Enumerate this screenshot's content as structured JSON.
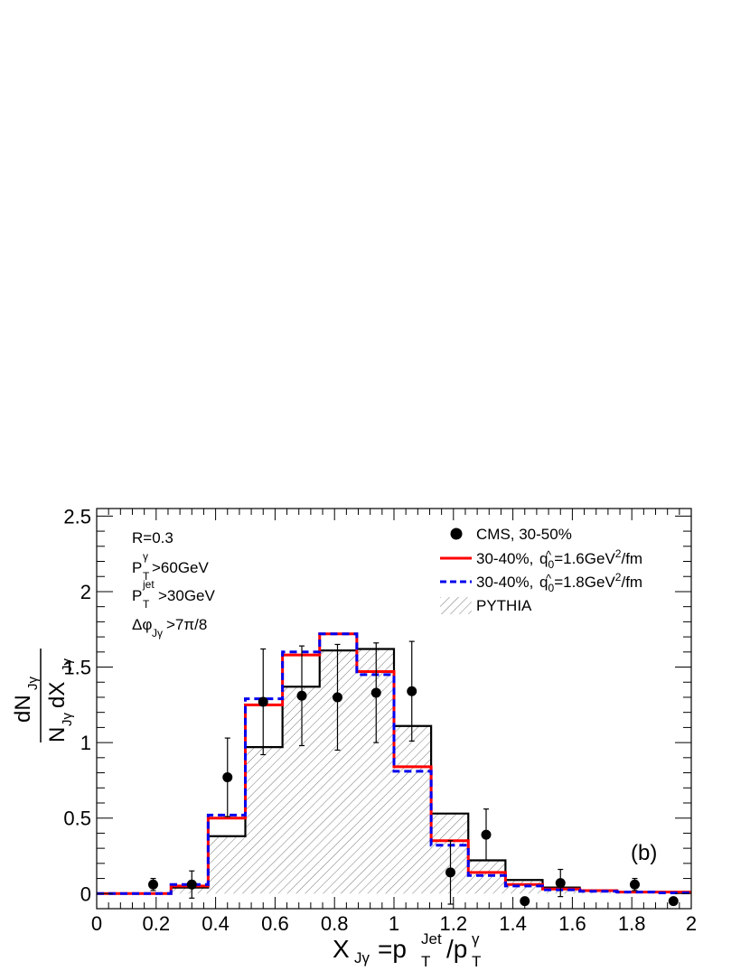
{
  "chart_data": {
    "type": "bar",
    "xlabel_main": "X",
    "xlabel_sub": "Jγ",
    "xlabel_eq": "=p",
    "xlabel_jet_sup": "Jet",
    "xlabel_T": "T",
    "xlabel_slash": "/p",
    "xlabel_gamma_sup": "γ",
    "xlabel_T2": "T",
    "ylabel_num": "dN",
    "ylabel_num_sub": "Jγ",
    "ylabel_den_N": "N",
    "ylabel_den_sub1": "Jγ",
    "ylabel_den_dX": "dX",
    "ylabel_den_sub2": "Jγ",
    "xlim": [
      0,
      2
    ],
    "ylim": [
      -0.1,
      2.55
    ],
    "x_ticks": [
      "0",
      "0.2",
      "0.4",
      "0.6",
      "0.8",
      "1",
      "1.2",
      "1.4",
      "1.6",
      "1.8",
      "2"
    ],
    "y_ticks": [
      "0",
      "0.5",
      "1",
      "1.5",
      "2",
      "2.5"
    ],
    "bin_edges": [
      0,
      0.125,
      0.25,
      0.375,
      0.5,
      0.625,
      0.75,
      0.875,
      1.0,
      1.125,
      1.25,
      1.375,
      1.5,
      1.625,
      1.75,
      1.875,
      2.0
    ],
    "series": [
      {
        "name": "PYTHIA",
        "style": "hatched-step",
        "color": "#000000",
        "values": [
          0.0,
          0.0,
          0.04,
          0.38,
          0.97,
          1.37,
          1.61,
          1.62,
          1.11,
          0.53,
          0.22,
          0.09,
          0.04,
          0.02,
          0.01,
          0.01
        ]
      },
      {
        "name": "30-40%, q0=1.6GeV²/fm",
        "style": "solid-step",
        "color": "#ff0000",
        "values": [
          0.0,
          0.0,
          0.05,
          0.5,
          1.25,
          1.58,
          1.72,
          1.47,
          0.84,
          0.35,
          0.14,
          0.06,
          0.03,
          0.02,
          0.01,
          0.01
        ]
      },
      {
        "name": "30-40%, q0=1.8GeV²/fm",
        "style": "dashed-step",
        "color": "#0000ee",
        "values": [
          0.0,
          0.0,
          0.06,
          0.52,
          1.29,
          1.6,
          1.72,
          1.45,
          0.81,
          0.32,
          0.12,
          0.05,
          0.025,
          0.015,
          0.01,
          0.005
        ]
      },
      {
        "name": "CMS, 30-50%",
        "style": "points",
        "color": "#000000",
        "points": [
          {
            "x": 0.19,
            "y": 0.06,
            "err": 0.04
          },
          {
            "x": 0.32,
            "y": 0.06,
            "err": 0.09
          },
          {
            "x": 0.44,
            "y": 0.77,
            "err": 0.26
          },
          {
            "x": 0.56,
            "y": 1.27,
            "err": 0.35
          },
          {
            "x": 0.69,
            "y": 1.31,
            "err": 0.33
          },
          {
            "x": 0.81,
            "y": 1.3,
            "err": 0.35
          },
          {
            "x": 0.94,
            "y": 1.33,
            "err": 0.33
          },
          {
            "x": 1.06,
            "y": 1.34,
            "err": 0.33
          },
          {
            "x": 1.19,
            "y": 0.14,
            "err": 0.21
          },
          {
            "x": 1.31,
            "y": 0.39,
            "err": 0.17
          },
          {
            "x": 1.44,
            "y": -0.05,
            "err": 0.0
          },
          {
            "x": 1.56,
            "y": 0.07,
            "err": 0.09
          },
          {
            "x": 1.81,
            "y": 0.06,
            "err": 0.04
          },
          {
            "x": 1.94,
            "y": -0.05,
            "err": 0.0
          }
        ]
      }
    ],
    "legend": [
      {
        "text": "CMS, 30-50%",
        "marker": "dot"
      },
      {
        "text": "30-40%, ",
        "qhat": "q",
        "qsub": "0",
        "rest": "=1.6GeV",
        "sup": "2",
        "tail": "/fm",
        "marker": "red-line"
      },
      {
        "text": "30-40%, ",
        "qhat": "q",
        "qsub": "0",
        "rest": "=1.8GeV",
        "sup": "2",
        "tail": "/fm",
        "marker": "blue-dash"
      },
      {
        "text": "PYTHIA",
        "marker": "hatch"
      }
    ],
    "annotations": {
      "R": "R=0.3",
      "pt_gamma_P": "P",
      "pt_gamma_sup": "γ",
      "pt_gamma_sub": "T",
      "pt_gamma_val": ">60GeV",
      "pt_jet_P": "P",
      "pt_jet_sup": "jet",
      "pt_jet_sub": "T",
      "pt_jet_val": ">30GeV",
      "dphi_main": "Δφ",
      "dphi_sub": "Jγ",
      "dphi_val": ">7π/8",
      "panel": "(b)"
    }
  }
}
